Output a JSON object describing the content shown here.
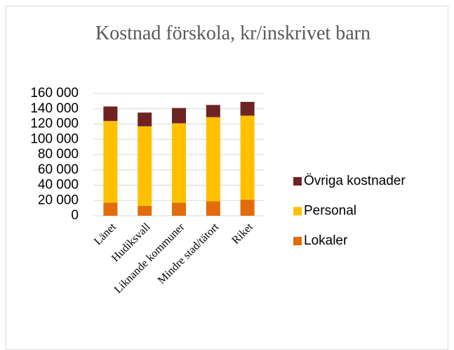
{
  "chart_data": {
    "type": "stacked_bar",
    "title": "Kostnad förskola, kr/inskrivet barn",
    "categories": [
      "Länet",
      "Hudiksvall",
      "Liknande kommuner",
      "Mindre stad/tätort",
      "Riket"
    ],
    "series": [
      {
        "name": "Lokaler",
        "color": "#e36c0a",
        "values": [
          17000,
          13000,
          17000,
          19000,
          21000
        ]
      },
      {
        "name": "Personal",
        "color": "#ffc000",
        "values": [
          107000,
          104000,
          104000,
          110000,
          110000
        ]
      },
      {
        "name": "Övriga kostnader",
        "color": "#6e2424",
        "values": [
          19000,
          18000,
          20000,
          16000,
          18000
        ]
      }
    ],
    "ylim": [
      0,
      160000
    ],
    "yticks": [
      0,
      {
        "value": 20000,
        "label": "20 000"
      },
      {
        "value": 40000,
        "label": "40 000"
      },
      {
        "value": 60000,
        "label": "60 000"
      },
      {
        "value": 80000,
        "label": "80 000"
      },
      {
        "value": 100000,
        "label": "100 000"
      },
      {
        "value": 120000,
        "label": "120 000"
      },
      {
        "value": 140000,
        "label": "140 000"
      },
      {
        "value": 160000,
        "label": "160 000"
      }
    ],
    "grid": true,
    "legend": "right"
  }
}
